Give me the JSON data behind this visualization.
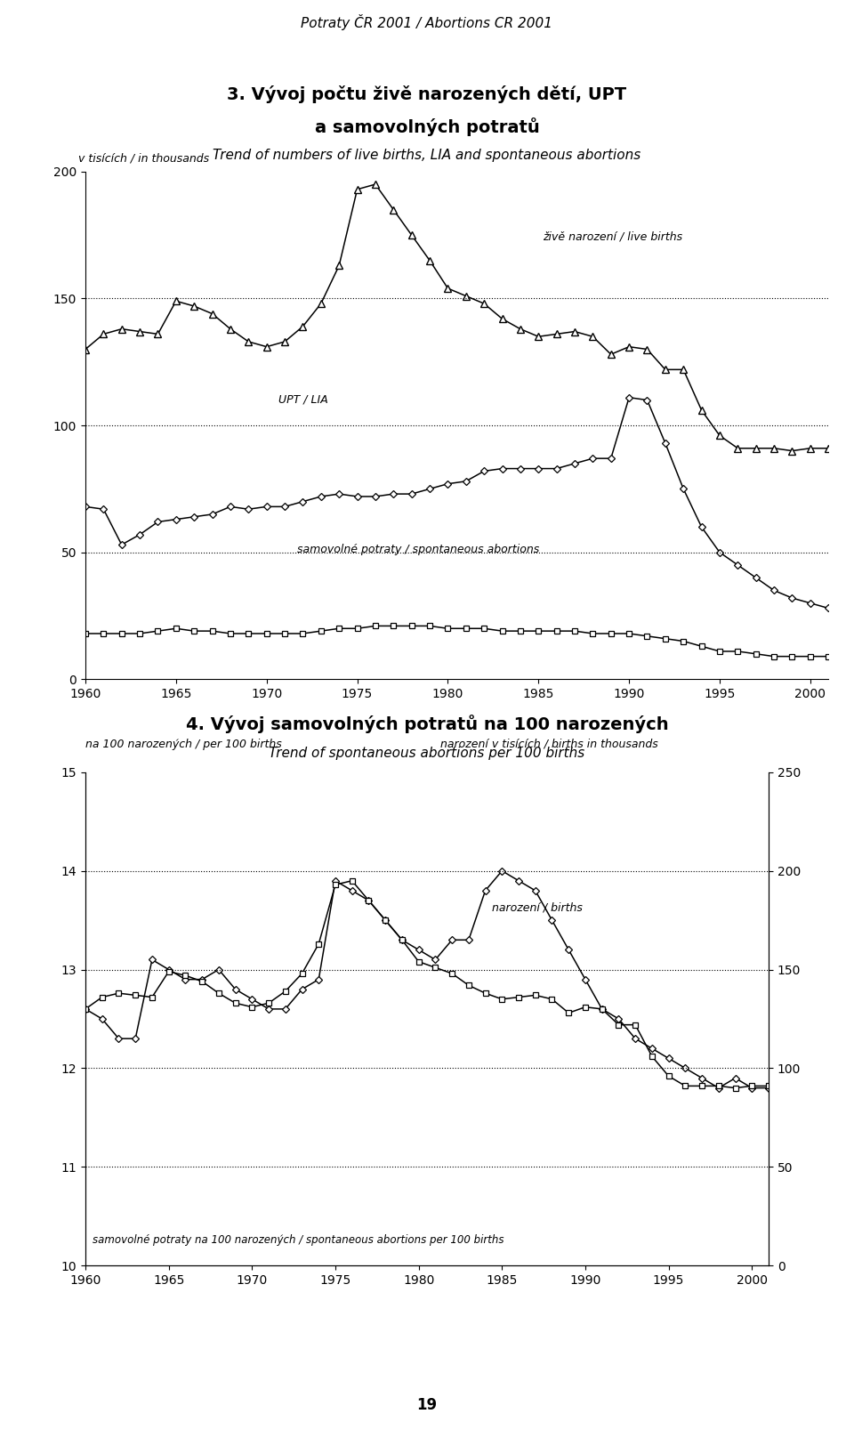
{
  "page_header": "Potraty ČR 2001 / Abortions CR 2001",
  "page_number": "19",
  "chart1": {
    "title_cz": "3. Vývoj počtu živě narozených dětí, UPT",
    "title_cz2": "a samovolných potratů",
    "title_en": "Trend of numbers of live births, LIA and spontaneous abortions",
    "ylabel": "v tisících / in thousands",
    "ylim": [
      0,
      200
    ],
    "yticks": [
      0,
      50,
      100,
      150,
      200
    ],
    "xlim": [
      1960,
      2001
    ],
    "xticks": [
      1960,
      1965,
      1970,
      1975,
      1980,
      1985,
      1990,
      1995,
      2000
    ],
    "label_live_births": "živě narození / live births",
    "label_upt": "UPT / LIA",
    "label_spon": "samovolné potraty / spontaneous abortions",
    "years": [
      1960,
      1961,
      1962,
      1963,
      1964,
      1965,
      1966,
      1967,
      1968,
      1969,
      1970,
      1971,
      1972,
      1973,
      1974,
      1975,
      1976,
      1977,
      1978,
      1979,
      1980,
      1981,
      1982,
      1983,
      1984,
      1985,
      1986,
      1987,
      1988,
      1989,
      1990,
      1991,
      1992,
      1993,
      1994,
      1995,
      1996,
      1997,
      1998,
      1999,
      2000,
      2001
    ],
    "live_births": [
      130,
      136,
      138,
      137,
      136,
      149,
      147,
      144,
      138,
      133,
      131,
      133,
      139,
      148,
      163,
      193,
      195,
      185,
      175,
      165,
      154,
      151,
      148,
      142,
      138,
      135,
      136,
      137,
      135,
      128,
      131,
      130,
      122,
      122,
      106,
      96,
      91,
      91,
      91,
      90,
      91,
      91
    ],
    "upt": [
      68,
      67,
      53,
      57,
      62,
      63,
      64,
      65,
      68,
      67,
      68,
      68,
      70,
      72,
      73,
      72,
      72,
      73,
      73,
      75,
      77,
      78,
      82,
      83,
      83,
      83,
      83,
      85,
      87,
      87,
      111,
      110,
      93,
      75,
      60,
      50,
      45,
      40,
      35,
      32,
      30,
      28
    ],
    "spon": [
      18,
      18,
      18,
      18,
      19,
      20,
      19,
      19,
      18,
      18,
      18,
      18,
      18,
      19,
      20,
      20,
      21,
      21,
      21,
      21,
      20,
      20,
      20,
      19,
      19,
      19,
      19,
      19,
      18,
      18,
      18,
      17,
      16,
      15,
      13,
      11,
      11,
      10,
      9,
      9,
      9,
      9
    ]
  },
  "chart2": {
    "title_cz": "4. Vývoj samovolných potratů na 100 narozených",
    "title_en": "Trend of spontaneous abortions per 100 births",
    "ylabel_left": "na 100 narozených / per 100 births",
    "ylabel_right": "narození v tisících / births in thousands",
    "ylim_left": [
      10,
      15
    ],
    "yticks_left": [
      10,
      11,
      12,
      13,
      14,
      15
    ],
    "ylim_right": [
      0,
      250
    ],
    "yticks_right": [
      0,
      50,
      100,
      150,
      200,
      250
    ],
    "xlim": [
      1960,
      2001
    ],
    "xticks": [
      1960,
      1965,
      1970,
      1975,
      1980,
      1985,
      1990,
      1995,
      2000
    ],
    "label_spon_rate": "samovolné potraty na 100 narozených / spontaneous abortions per 100 births",
    "label_births": "narození / births",
    "years": [
      1960,
      1961,
      1962,
      1963,
      1964,
      1965,
      1966,
      1967,
      1968,
      1969,
      1970,
      1971,
      1972,
      1973,
      1974,
      1975,
      1976,
      1977,
      1978,
      1979,
      1980,
      1981,
      1982,
      1983,
      1984,
      1985,
      1986,
      1987,
      1988,
      1989,
      1990,
      1991,
      1992,
      1993,
      1994,
      1995,
      1996,
      1997,
      1998,
      1999,
      2000,
      2001
    ],
    "spon_rate": [
      12.6,
      12.5,
      12.3,
      12.3,
      13.1,
      13.0,
      12.9,
      12.9,
      13.0,
      12.8,
      12.7,
      12.6,
      12.6,
      12.8,
      12.9,
      13.9,
      13.8,
      13.7,
      13.5,
      13.3,
      13.2,
      13.1,
      13.3,
      13.3,
      13.8,
      14.0,
      13.9,
      13.8,
      13.5,
      13.2,
      12.9,
      12.6,
      12.5,
      12.3,
      12.2,
      12.1,
      12.0,
      11.9,
      11.8,
      11.9,
      11.8,
      11.8
    ],
    "births_sq": [
      130,
      136,
      138,
      137,
      136,
      149,
      147,
      144,
      138,
      133,
      131,
      133,
      139,
      148,
      163,
      193,
      195,
      185,
      175,
      165,
      154,
      151,
      148,
      142,
      138,
      135,
      136,
      137,
      135,
      128,
      131,
      130,
      122,
      122,
      106,
      96,
      91,
      91,
      91,
      90,
      91,
      91
    ]
  }
}
